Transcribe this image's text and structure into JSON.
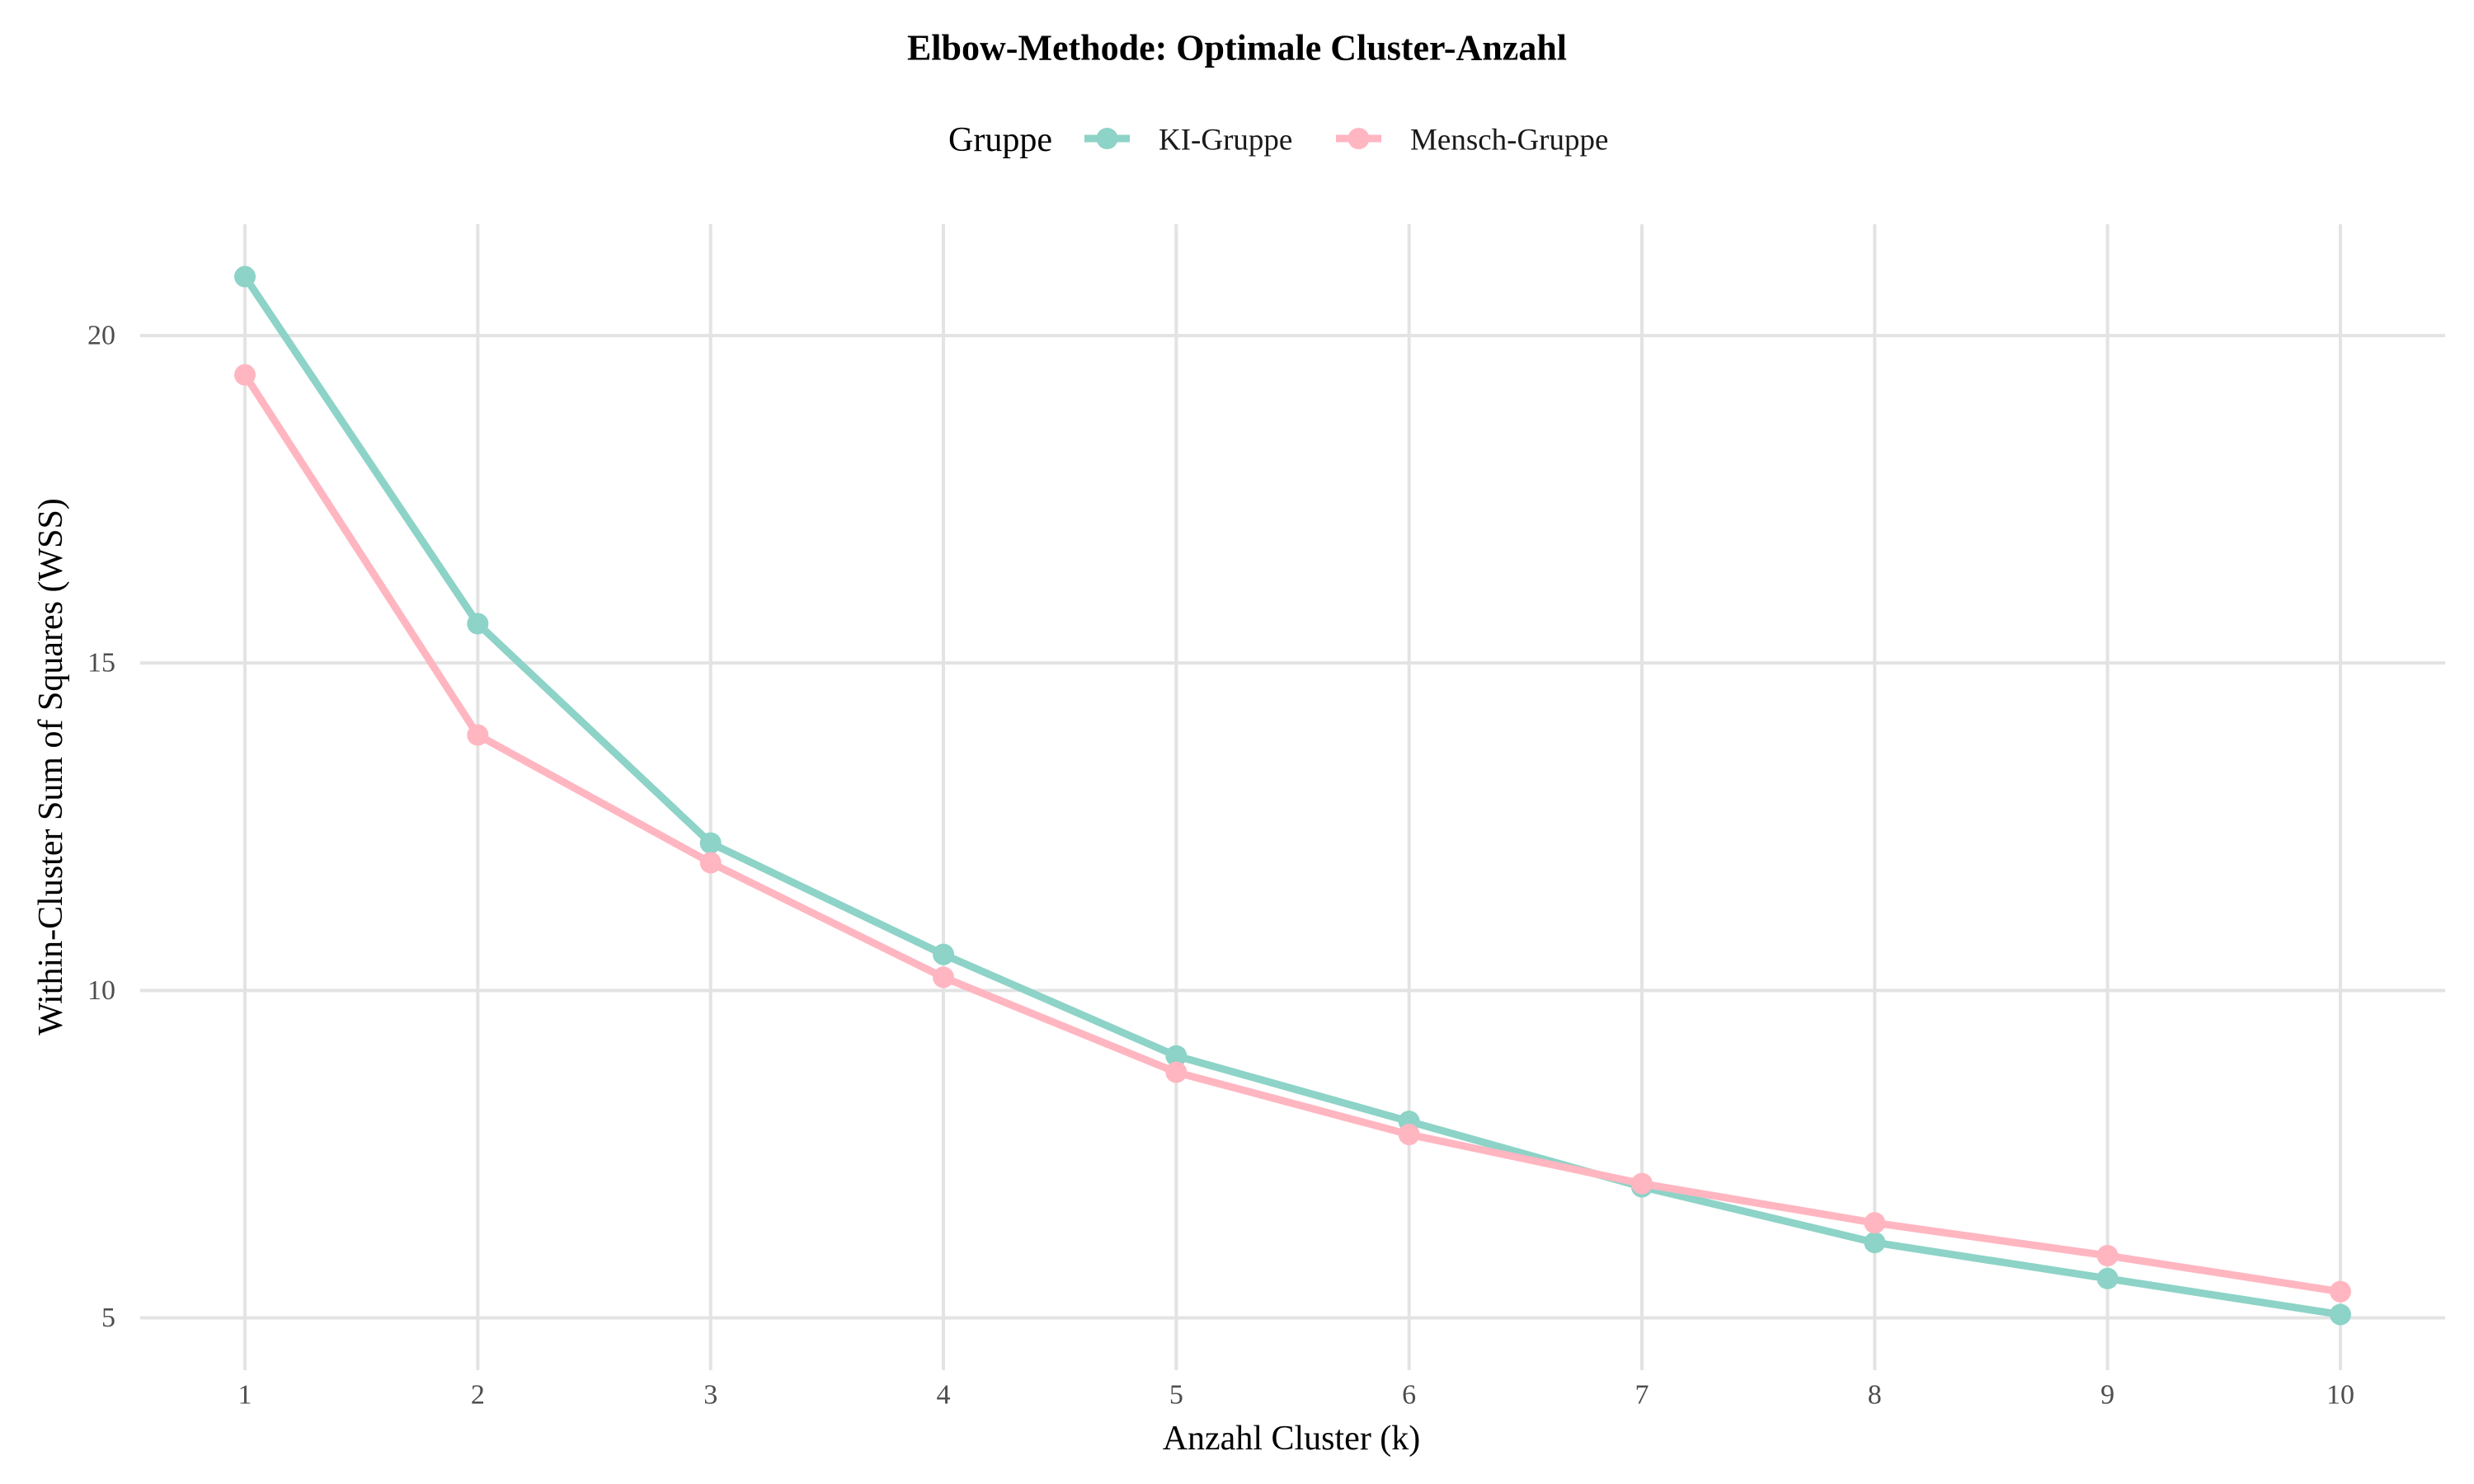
{
  "chart_data": {
    "type": "line",
    "title": "Elbow-Methode: Optimale Cluster-Anzahl",
    "xlabel": "Anzahl Cluster (k)",
    "ylabel": "Within-Cluster Sum of Squares (WSS)",
    "legend_title": "Gruppe",
    "legend_position": "top",
    "grid": true,
    "x": [
      1,
      2,
      3,
      4,
      5,
      6,
      7,
      8,
      9,
      10
    ],
    "x_ticks": [
      "1",
      "2",
      "3",
      "4",
      "5",
      "6",
      "7",
      "8",
      "9",
      "10"
    ],
    "y_ticks": [
      "5",
      "10",
      "15",
      "20"
    ],
    "y_tick_values": [
      5,
      10,
      15,
      20
    ],
    "xlim": [
      0.55,
      10.45
    ],
    "ylim": [
      4.2,
      21.7
    ],
    "series": [
      {
        "name": "KI-Gruppe",
        "color": "#8DD3C7",
        "values": [
          20.9,
          15.6,
          12.25,
          10.55,
          9.0,
          8.0,
          7.0,
          6.15,
          5.6,
          5.05
        ]
      },
      {
        "name": "Mensch-Gruppe",
        "color": "#FFB6C1",
        "values": [
          19.4,
          13.9,
          11.95,
          10.2,
          8.75,
          7.8,
          7.05,
          6.45,
          5.95,
          5.4
        ]
      }
    ]
  }
}
